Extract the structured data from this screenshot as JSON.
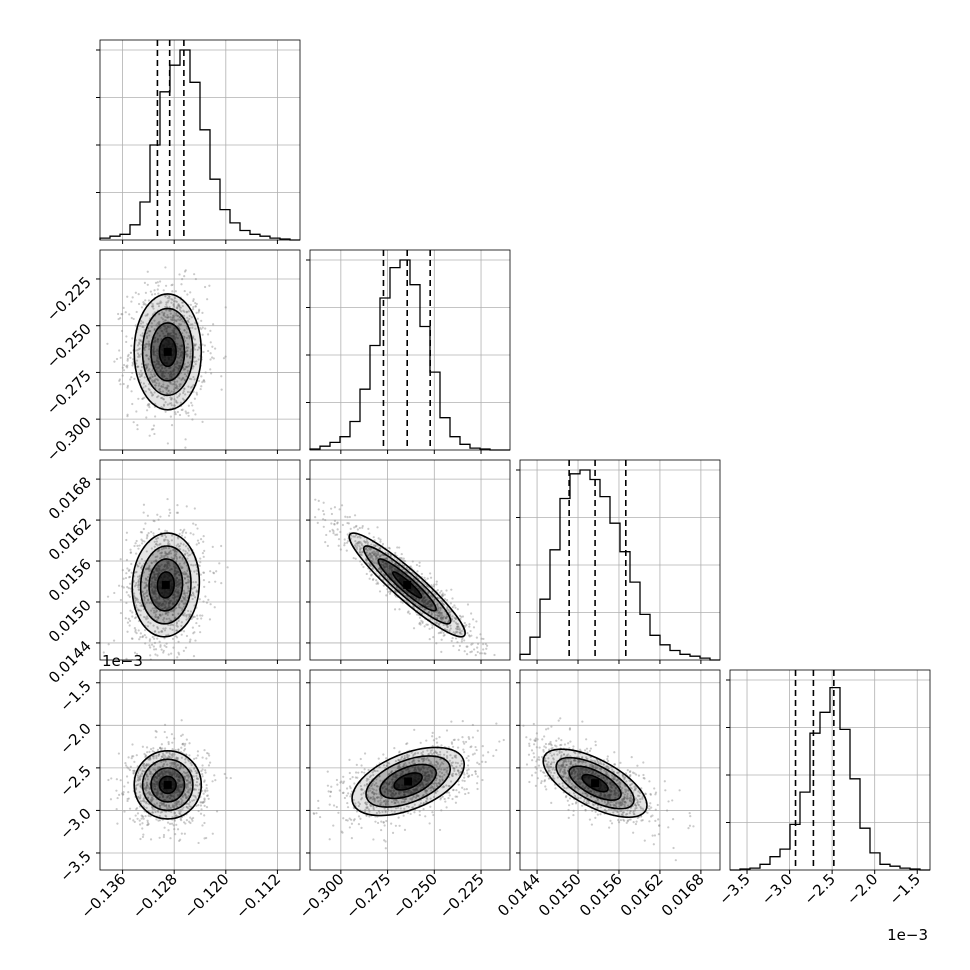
{
  "chart_data": {
    "type": "scatter",
    "plot_kind": "corner",
    "grid": true,
    "parameters": [
      {
        "range": [
          -0.1395,
          -0.1085
        ],
        "ticks": [
          "−0.136",
          "−0.128",
          "−0.120",
          "−0.112"
        ],
        "tick_values": [
          -0.136,
          -0.128,
          -0.12,
          -0.112
        ],
        "quantiles": [
          -0.1306,
          -0.1287,
          -0.1265
        ],
        "offset_text": ""
      },
      {
        "range": [
          -0.3165,
          -0.2095
        ],
        "ticks": [
          "−0.300",
          "−0.275",
          "−0.250",
          "−0.225"
        ],
        "tick_values": [
          -0.3,
          -0.275,
          -0.25,
          -0.225
        ],
        "quantiles": [
          -0.2772,
          -0.2645,
          -0.2522
        ],
        "offset_text": ""
      },
      {
        "range": [
          0.01415,
          0.01708
        ],
        "ticks": [
          "0.0144",
          "0.0150",
          "0.0156",
          "0.0162",
          "0.0168"
        ],
        "tick_values": [
          0.0144,
          0.015,
          0.0156,
          0.0162,
          0.0168
        ],
        "quantiles": [
          0.01487,
          0.01525,
          0.0157
        ],
        "offset_text": ""
      },
      {
        "range": [
          -3.7,
          -1.35
        ],
        "ticks": [
          "−3.5",
          "−3.0",
          "−2.5",
          "−2.0",
          "−1.5"
        ],
        "tick_values": [
          -3.5,
          -3.0,
          -2.5,
          -2.0,
          -1.5
        ],
        "quantiles": [
          -2.93,
          -2.72,
          -2.48
        ],
        "offset_text": "1e−3"
      }
    ],
    "histograms": [
      [
        0.01,
        0.02,
        0.03,
        0.08,
        0.2,
        0.5,
        0.78,
        0.92,
        1.0,
        0.83,
        0.58,
        0.32,
        0.16,
        0.09,
        0.05,
        0.03,
        0.02,
        0.01,
        0.005,
        0.0
      ],
      [
        0.005,
        0.02,
        0.04,
        0.07,
        0.15,
        0.32,
        0.55,
        0.8,
        0.96,
        1.0,
        0.87,
        0.65,
        0.41,
        0.17,
        0.07,
        0.03,
        0.01,
        0.005,
        0.0,
        0.0
      ],
      [
        0.03,
        0.12,
        0.32,
        0.58,
        0.85,
        0.98,
        1.0,
        0.95,
        0.86,
        0.72,
        0.57,
        0.41,
        0.24,
        0.13,
        0.08,
        0.05,
        0.03,
        0.02,
        0.01,
        0.0
      ],
      [
        0.0,
        0.005,
        0.01,
        0.03,
        0.07,
        0.11,
        0.24,
        0.41,
        0.72,
        0.83,
        0.96,
        0.74,
        0.48,
        0.22,
        0.09,
        0.03,
        0.02,
        0.01,
        0.005,
        0.0
      ]
    ],
    "pair_panels": [
      {
        "row": 1,
        "col": 0,
        "mean": [
          -0.129,
          -0.264
        ],
        "sd": [
          0.0026,
          0.0155
        ],
        "corr": 0.0,
        "n_points": 1100
      },
      {
        "row": 2,
        "col": 0,
        "mean": [
          -0.1293,
          0.01525
        ],
        "sd": [
          0.0026,
          0.00038
        ],
        "corr": 0.05,
        "n_points": 1100
      },
      {
        "row": 2,
        "col": 1,
        "mean": [
          -0.2645,
          0.01525
        ],
        "sd": [
          0.0155,
          0.00038
        ],
        "corr": -0.93,
        "n_points": 1300
      },
      {
        "row": 3,
        "col": 0,
        "mean": [
          -0.129,
          -2.7
        ],
        "sd": [
          0.0026,
          0.2
        ],
        "corr": 0.0,
        "n_points": 1100
      },
      {
        "row": 3,
        "col": 1,
        "mean": [
          -0.264,
          -2.66
        ],
        "sd": [
          0.015,
          0.2
        ],
        "corr": 0.5,
        "n_points": 1100
      },
      {
        "row": 3,
        "col": 2,
        "mean": [
          0.01525,
          -2.68
        ],
        "sd": [
          0.00038,
          0.2
        ],
        "corr": -0.65,
        "n_points": 1100
      }
    ],
    "contour_levels_sigma": [
      0.5,
      1.0,
      1.5,
      2.0
    ],
    "colors": {
      "line": "#000000",
      "grid": "#b0b0b0",
      "points": "#8a8a8a"
    }
  }
}
